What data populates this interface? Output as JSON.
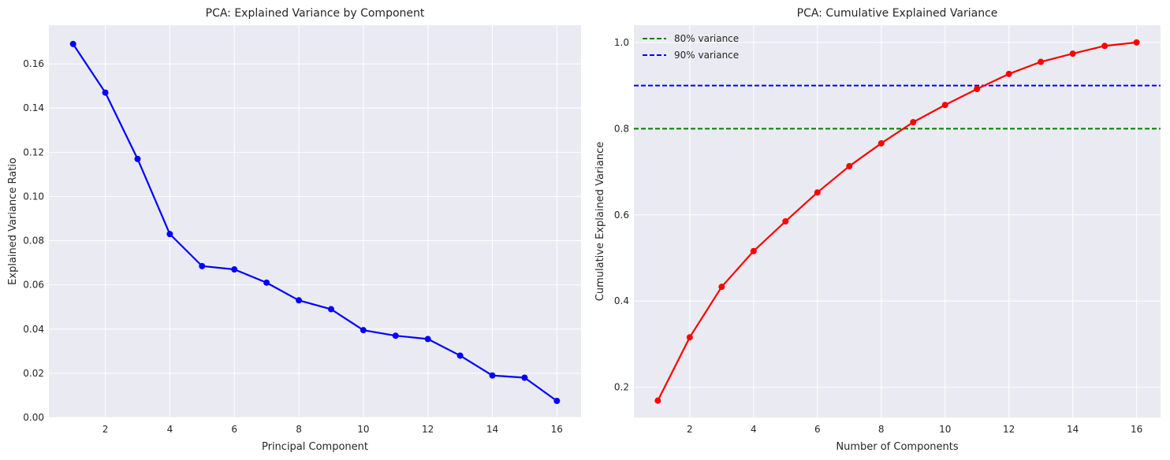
{
  "chart_data": [
    {
      "type": "line",
      "title": "PCA: Explained Variance by Component",
      "xlabel": "Principal Component",
      "ylabel": "Explained Variance Ratio",
      "xlim": [
        0.25,
        16.75
      ],
      "ylim": [
        0.0,
        0.1775
      ],
      "xticks": [
        2,
        4,
        6,
        8,
        10,
        12,
        14,
        16
      ],
      "yticks": [
        0.0,
        0.02,
        0.04,
        0.06,
        0.08,
        0.1,
        0.12,
        0.14,
        0.16
      ],
      "ytick_format": 2,
      "grid": true,
      "series": [
        {
          "name": "Explained variance ratio",
          "color": "#0000ff",
          "x": [
            1,
            2,
            3,
            4,
            5,
            6,
            7,
            8,
            9,
            10,
            11,
            12,
            13,
            14,
            15,
            16
          ],
          "values": [
            0.169,
            0.147,
            0.117,
            0.083,
            0.0685,
            0.067,
            0.061,
            0.053,
            0.049,
            0.0395,
            0.037,
            0.0355,
            0.028,
            0.019,
            0.018,
            0.0075
          ]
        }
      ]
    },
    {
      "type": "line",
      "title": "PCA: Cumulative Explained Variance",
      "xlabel": "Number of Components",
      "ylabel": "Cumulative Explained Variance",
      "xlim": [
        0.25,
        16.75
      ],
      "ylim": [
        0.13,
        1.04
      ],
      "xticks": [
        2,
        4,
        6,
        8,
        10,
        12,
        14,
        16
      ],
      "yticks": [
        0.2,
        0.4,
        0.6,
        0.8,
        1.0
      ],
      "ytick_format": 1,
      "grid": true,
      "legend_position": "top-left",
      "series": [
        {
          "name": "Cumulative explained variance",
          "color": "#ff0000",
          "x": [
            1,
            2,
            3,
            4,
            5,
            6,
            7,
            8,
            9,
            10,
            11,
            12,
            13,
            14,
            15,
            16
          ],
          "values": [
            0.169,
            0.316,
            0.433,
            0.516,
            0.585,
            0.652,
            0.713,
            0.766,
            0.815,
            0.855,
            0.892,
            0.927,
            0.955,
            0.974,
            0.992,
            1.0
          ]
        }
      ],
      "hlines": [
        {
          "y": 0.8,
          "color": "#008000",
          "label": "80% variance"
        },
        {
          "y": 0.9,
          "color": "#0000ff",
          "label": "90% variance"
        }
      ]
    }
  ]
}
